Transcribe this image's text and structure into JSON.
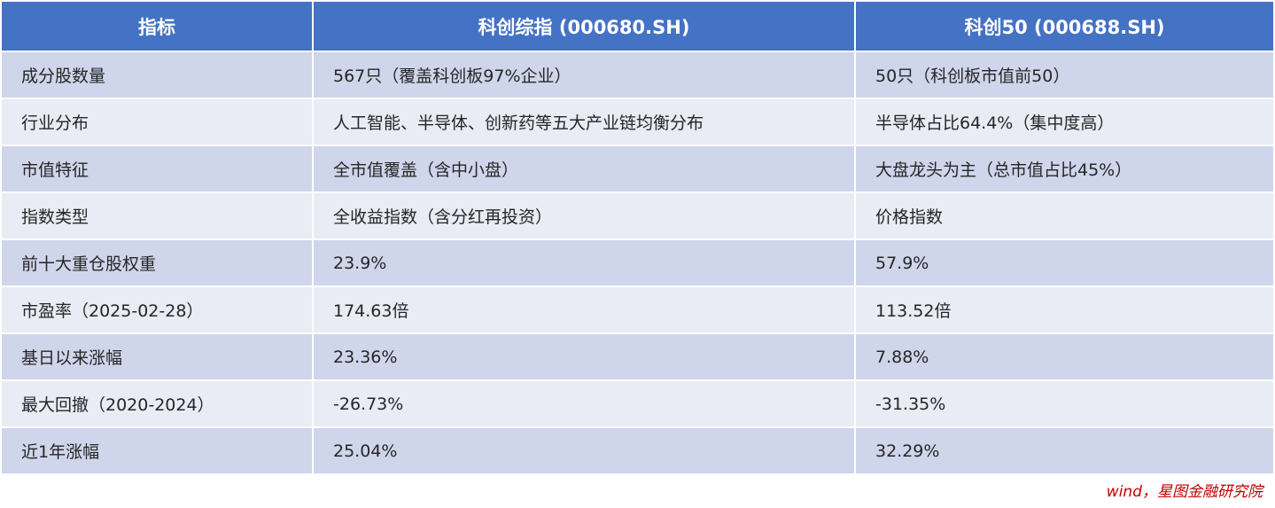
{
  "table": {
    "headers": [
      "指标",
      "科创综指 (000680.SH)",
      "科创50 (000688.SH)"
    ],
    "rows": [
      [
        "成分股数量",
        "567只（覆盖科创板97%企业）",
        "50只（科创板市值前50）"
      ],
      [
        "行业分布",
        "人工智能、半导体、创新药等五大产业链均衡分布",
        "半导体占比64.4%（集中度高）"
      ],
      [
        "市值特征",
        "全市值覆盖（含中小盘）",
        "大盘龙头为主（总市值占比45%）"
      ],
      [
        "指数类型",
        "全收益指数（含分红再投资）",
        "价格指数"
      ],
      [
        "前十大重仓股权重",
        "23.9%",
        "57.9%"
      ],
      [
        "市盈率（2025-02-28）",
        "174.63倍",
        "113.52倍"
      ],
      [
        "基日以来涨幅",
        "23.36%",
        "7.88%"
      ],
      [
        "最大回撤（2020-2024）",
        "-26.73%",
        "-31.35%"
      ],
      [
        "近1年涨幅",
        "25.04%",
        "32.29%"
      ]
    ]
  },
  "source_note": "wind，星图金融研究院",
  "colors": {
    "header_bg": "#4472c4",
    "row_odd_bg": "#cfd5ea",
    "row_even_bg": "#e9ebf5",
    "source_text": "#c00000"
  }
}
